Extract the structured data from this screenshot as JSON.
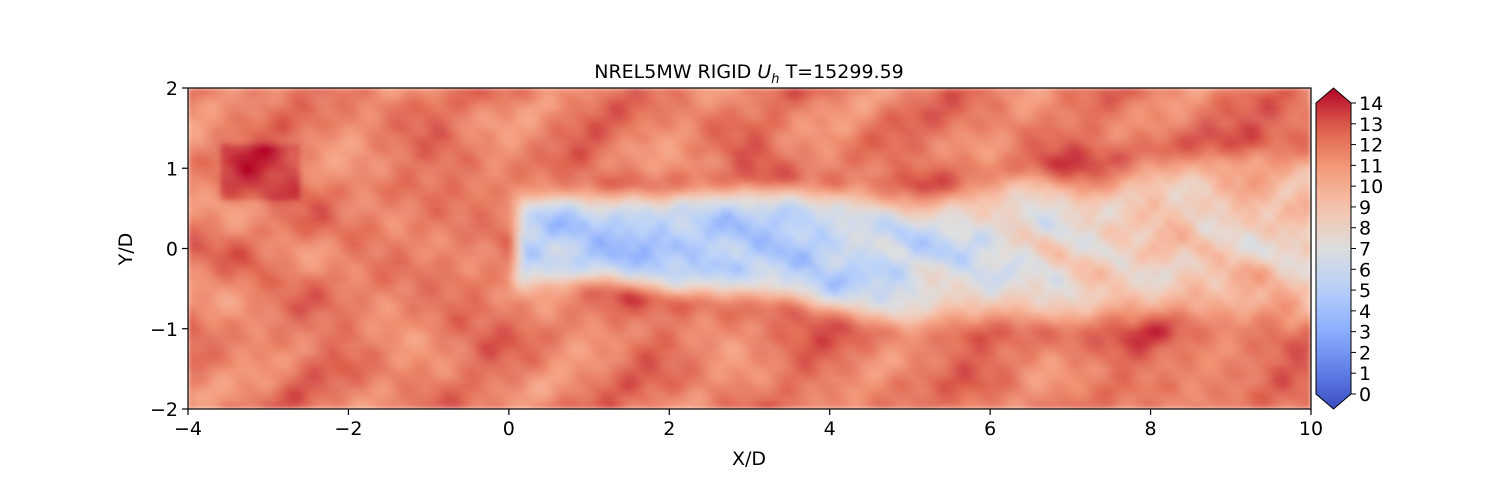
{
  "chart_data": {
    "type": "heatmap",
    "title_prefix": "NREL5MW RIGID ",
    "title_var_main": "U",
    "title_var_sub": "h",
    "title_suffix": " T=15299.59",
    "xlabel": "X/D",
    "ylabel": "Y/D",
    "xlim": [
      -4,
      10
    ],
    "ylim": [
      -2,
      2
    ],
    "xticks": [
      -4,
      -2,
      0,
      2,
      4,
      6,
      8,
      10
    ],
    "xtick_labels": [
      "−4",
      "−2",
      "0",
      "2",
      "4",
      "6",
      "8",
      "10"
    ],
    "yticks": [
      -2,
      -1,
      0,
      1,
      2
    ],
    "ytick_labels": [
      "−2",
      "−1",
      "0",
      "1",
      "2"
    ],
    "colorbar": {
      "colormap": "coolwarm",
      "range": [
        0,
        14
      ],
      "extend": "both",
      "ticks": [
        0,
        1,
        2,
        3,
        4,
        5,
        6,
        7,
        8,
        9,
        10,
        11,
        12,
        13,
        14
      ],
      "tick_labels": [
        "0",
        "1",
        "2",
        "3",
        "4",
        "5",
        "6",
        "7",
        "8",
        "9",
        "10",
        "11",
        "12",
        "13",
        "14"
      ]
    },
    "field_description": {
      "freestream_value": 11.5,
      "wake_start_x": 0.0,
      "wake_half_width": 0.5,
      "wake_min_value": 4.8,
      "wake_recovered_value": 8.5
    }
  }
}
